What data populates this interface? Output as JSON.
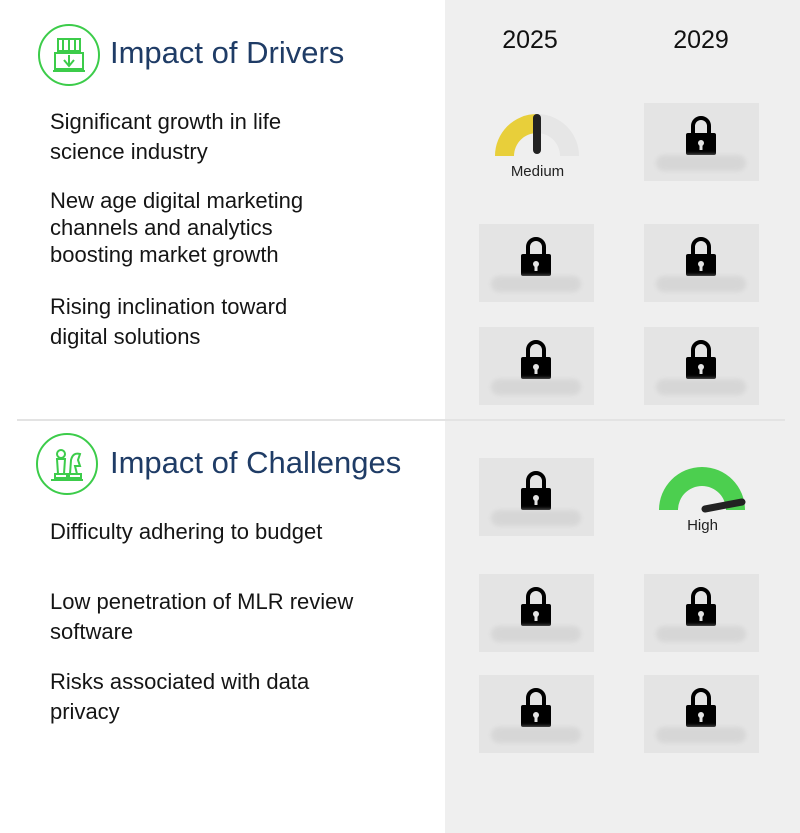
{
  "years": [
    "2025",
    "2029"
  ],
  "drivers": {
    "title": "Impact of Drivers",
    "rows": [
      {
        "lines": [
          "Significant growth in life",
          "science industry"
        ],
        "gauge_2025": {
          "level": "Medium",
          "value": 0.5,
          "color": "#e8cf3a"
        }
      },
      {
        "lines": [
          "New age digital marketing",
          "channels and analytics",
          "boosting market growth"
        ]
      },
      {
        "lines": [
          "Rising inclination toward",
          "digital solutions"
        ]
      }
    ]
  },
  "challenges": {
    "title": "Impact of Challenges",
    "rows": [
      {
        "lines": [
          "Difficulty adhering to budget"
        ],
        "gauge_2029": {
          "level": "High",
          "value": 0.95,
          "color": "#4ccf4f"
        }
      },
      {
        "lines": [
          "Low penetration of MLR review",
          "software"
        ]
      },
      {
        "lines": [
          "Risks associated with data",
          "privacy"
        ]
      }
    ]
  },
  "colors": {
    "title": "#1f3c66",
    "icon_ring": "#3ccc4a",
    "medium": "#e8cf3a",
    "high": "#4ccf4f",
    "locked_bg": "#e4e4e4",
    "panel_bg": "#efefef"
  },
  "icons": [
    "drivers-icon",
    "chess-icon",
    "lock-icon"
  ]
}
